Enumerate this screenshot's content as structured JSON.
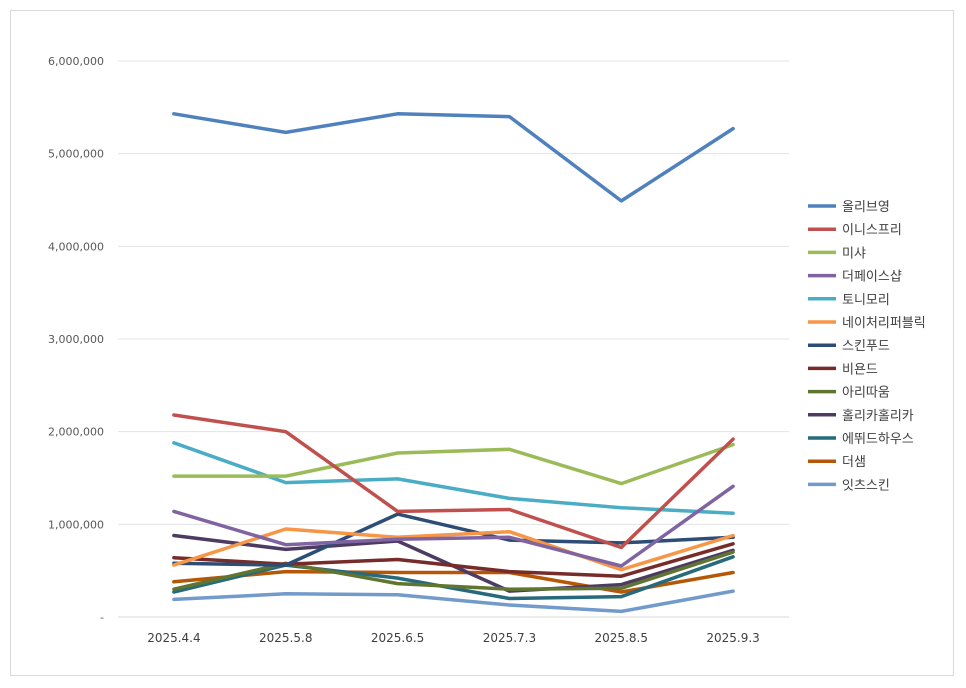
{
  "chart_data": {
    "type": "line",
    "title": "",
    "xlabel": "",
    "ylabel": "",
    "ylim": [
      0,
      6000000
    ],
    "yticks": [
      0,
      1000000,
      2000000,
      3000000,
      4000000,
      5000000,
      6000000
    ],
    "ytick_labels": [
      "-",
      "1,000,000",
      "2,000,000",
      "3,000,000",
      "4,000,000",
      "5,000,000",
      "6,000,000"
    ],
    "grid": true,
    "legend_position": "right",
    "categories": [
      "2025.4.4",
      "2025.5.8",
      "2025.6.5",
      "2025.7.3",
      "2025.8.5",
      "2025.9.3"
    ],
    "series": [
      {
        "name": "올리브영",
        "color": "#4f81bd",
        "values": [
          5430000,
          5230000,
          5430000,
          5400000,
          4490000,
          5270000
        ]
      },
      {
        "name": "이니스프리",
        "color": "#c0504d",
        "values": [
          2180000,
          2000000,
          1140000,
          1160000,
          750000,
          1920000
        ]
      },
      {
        "name": "미샤",
        "color": "#9bbb59",
        "values": [
          1520000,
          1520000,
          1770000,
          1810000,
          1440000,
          1860000
        ]
      },
      {
        "name": "더페이스샵",
        "color": "#8064a2",
        "values": [
          1140000,
          780000,
          840000,
          860000,
          550000,
          1410000
        ]
      },
      {
        "name": "토니모리",
        "color": "#4bacc6",
        "values": [
          1880000,
          1450000,
          1490000,
          1280000,
          1180000,
          1120000
        ]
      },
      {
        "name": "네이처리퍼블릭",
        "color": "#f79646",
        "values": [
          560000,
          950000,
          860000,
          920000,
          510000,
          880000
        ]
      },
      {
        "name": "스킨푸드",
        "color": "#2c4d75",
        "values": [
          580000,
          560000,
          1110000,
          830000,
          800000,
          860000
        ]
      },
      {
        "name": "비욘드",
        "color": "#772c2a",
        "values": [
          640000,
          570000,
          620000,
          490000,
          440000,
          790000
        ]
      },
      {
        "name": "아리따움",
        "color": "#5f7530",
        "values": [
          300000,
          580000,
          360000,
          300000,
          310000,
          700000
        ]
      },
      {
        "name": "홀리카홀리카",
        "color": "#4d3b62",
        "values": [
          880000,
          730000,
          820000,
          280000,
          350000,
          720000
        ]
      },
      {
        "name": "에뛰드하우스",
        "color": "#276a7c",
        "values": [
          270000,
          560000,
          420000,
          200000,
          220000,
          650000
        ]
      },
      {
        "name": "더샘",
        "color": "#b65708",
        "values": [
          380000,
          490000,
          480000,
          480000,
          270000,
          480000
        ]
      },
      {
        "name": "잇츠스킨",
        "color": "#729aca",
        "values": [
          190000,
          250000,
          240000,
          130000,
          60000,
          280000
        ]
      }
    ]
  }
}
